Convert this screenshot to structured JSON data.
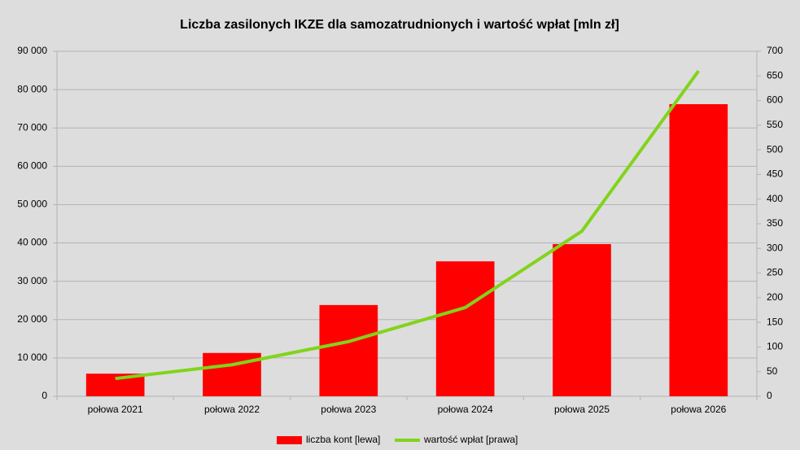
{
  "chart_data": {
    "type": "bar-line",
    "title": "Liczba zasilonych IKZE dla samozatrudnionych i wartość wpłat [mln zł]",
    "categories": [
      "połowa 2021",
      "połowa 2022",
      "połowa 2023",
      "połowa 2024",
      "połowa 2025",
      "połowa 2026"
    ],
    "series": [
      {
        "name": "liczba kont [lewa]",
        "color": "#ff0000",
        "type": "bar",
        "values": [
          5900,
          11300,
          23800,
          35200,
          39700,
          76200
        ]
      },
      {
        "name": "wartość wpłat [prawa]",
        "color": "#81d41a",
        "type": "line",
        "axis": "y2",
        "values": [
          36,
          64,
          111,
          180,
          335,
          660
        ]
      }
    ],
    "ylim": [
      0,
      90000
    ],
    "yticks": [
      0,
      {
        "value": 10000,
        "label": "10 000"
      },
      {
        "value": 20000,
        "label": "20 000"
      },
      {
        "value": 30000,
        "label": "30 000"
      },
      {
        "value": 40000,
        "label": "40 000"
      },
      {
        "value": 50000,
        "label": "50 000"
      },
      {
        "value": 60000,
        "label": "60 000"
      },
      {
        "value": 70000,
        "label": "70 000"
      },
      {
        "value": 80000,
        "label": "80 000"
      },
      {
        "value": 90000,
        "label": "90 000"
      }
    ],
    "y2lim": [
      0,
      700
    ],
    "y2ticks": [
      0,
      50,
      100,
      150,
      200,
      250,
      300,
      350,
      400,
      450,
      500,
      550,
      600,
      650,
      700
    ],
    "grid": true,
    "legend": "bottom"
  }
}
